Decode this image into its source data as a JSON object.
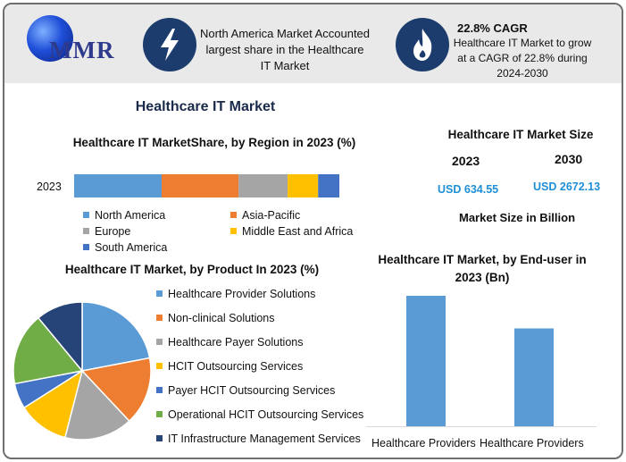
{
  "header": {
    "logo_text": "MMR",
    "na_text": "North America Market Accounted largest share in the Healthcare IT Market",
    "cagr_title": "22.8% CAGR",
    "cagr_text": "Healthcare IT Market to grow at a CAGR of 22.8% during 2024-2030",
    "icons": [
      "lightning-icon",
      "flame-icon"
    ]
  },
  "main_title": "Healthcare IT Market",
  "market_size": {
    "title": "Healthcare IT Market Size",
    "year1": "2023",
    "year2": "2030",
    "value1": "USD 634.55",
    "value2": "USD 2672.13",
    "note": "Market Size in Billion"
  },
  "chart_data": [
    {
      "type": "bar",
      "orientation": "horizontal-stacked",
      "title": "Healthcare IT MarketShare, by Region in 2023 (%)",
      "categories": [
        "2023"
      ],
      "series": [
        {
          "name": "North America",
          "values": [
            33
          ],
          "color": "#5b9bd5"
        },
        {
          "name": "Asia-Pacific",
          "values": [
            29
          ],
          "color": "#ed7d31"
        },
        {
          "name": "Europe",
          "values": [
            18.5
          ],
          "color": "#a5a5a5"
        },
        {
          "name": "Middle East and Africa",
          "values": [
            11.5
          ],
          "color": "#ffc000"
        },
        {
          "name": "South America",
          "values": [
            8
          ],
          "color": "#4472c4"
        }
      ],
      "legend": "bottom"
    },
    {
      "type": "pie",
      "title": "Healthcare IT Market, by Product In 2023 (%)",
      "labels": [
        "Healthcare Provider Solutions",
        "Non-clinical Solutions",
        "Healthcare Payer Solutions",
        "HCIT Outsourcing Services",
        "Payer HCIT Outsourcing Services",
        "Operational HCIT Outsourcing Services",
        "IT Infrastructure Management Services"
      ],
      "values": [
        22,
        16,
        16,
        12,
        6,
        17,
        11
      ],
      "colors": [
        "#5b9bd5",
        "#ed7d31",
        "#a5a5a5",
        "#ffc000",
        "#4472c4",
        "#70ad47",
        "#264478"
      ],
      "legend": "right"
    },
    {
      "type": "bar",
      "title": "Healthcare IT Market, by End-user in 2023 (Bn)",
      "categories": [
        "Healthcare Providers",
        "Healthcare Providers"
      ],
      "values": [
        100,
        75
      ],
      "color": "#5b9bd5",
      "ylim": [
        0,
        100
      ]
    }
  ]
}
